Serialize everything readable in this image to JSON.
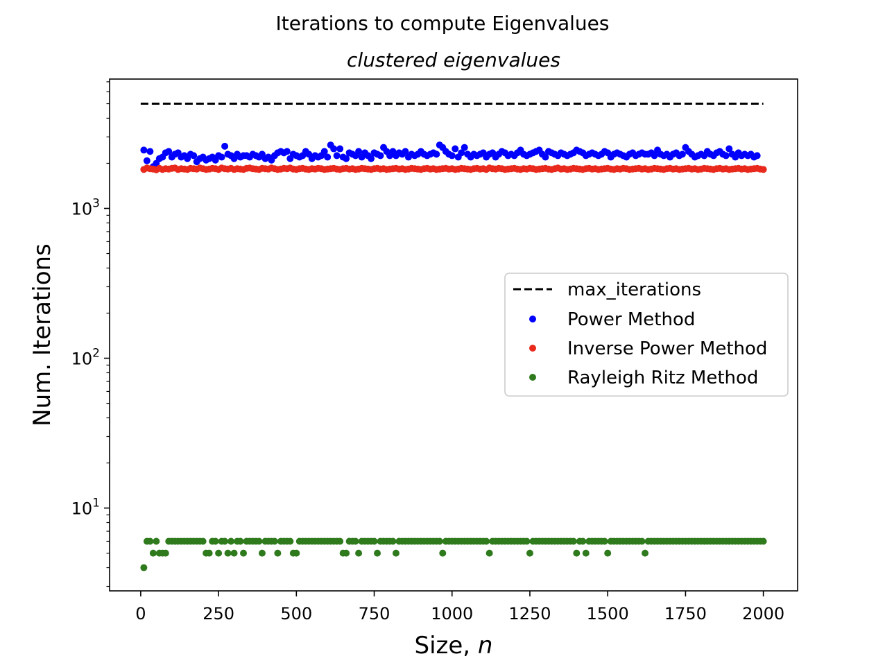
{
  "chart_data": {
    "type": "scatter",
    "title": "Iterations to compute Eigenvalues",
    "subtitle": "clustered eigenvalues",
    "xlabel": "Size, ",
    "xlabel_var": "n",
    "ylabel": "Num. Iterations",
    "yscale": "log",
    "xlim": [
      -100,
      2110
    ],
    "ylim": [
      2.8,
      7300
    ],
    "x_ticks": [
      0,
      250,
      500,
      750,
      1000,
      1250,
      1500,
      1750,
      2000
    ],
    "x_tick_labels": [
      "0",
      "250",
      "500",
      "750",
      "1000",
      "1250",
      "1500",
      "1750",
      "2000"
    ],
    "y_ticks": [
      10,
      100,
      1000
    ],
    "y_tick_bases": [
      "10",
      "10",
      "10"
    ],
    "y_tick_exponents": [
      "1",
      "2",
      "3"
    ],
    "grid": false,
    "legend_position": "center-right",
    "x_start": 10,
    "x_step": 10,
    "series": [
      {
        "name": "max_iterations",
        "kind": "line",
        "style": "dashed",
        "color": "#000000",
        "x": [
          0,
          2000
        ],
        "y": [
          5000,
          5000
        ]
      },
      {
        "name": "Power Method",
        "kind": "scatter",
        "color": "#0000ff",
        "values": [
          2450,
          2080,
          2400,
          1900,
          2000,
          2150,
          2200,
          2350,
          2400,
          2200,
          2300,
          2350,
          2200,
          2250,
          2150,
          2300,
          2250,
          2050,
          2150,
          2200,
          2100,
          2150,
          2200,
          2100,
          2250,
          2200,
          2600,
          2300,
          2250,
          2150,
          2300,
          2200,
          2250,
          2250,
          2200,
          2300,
          2250,
          2200,
          2300,
          2150,
          2200,
          2100,
          2250,
          2350,
          2400,
          2350,
          2400,
          2150,
          2300,
          2250,
          2200,
          2250,
          2400,
          2300,
          2150,
          2250,
          2200,
          2250,
          2400,
          2200,
          2650,
          2500,
          2250,
          2500,
          2200,
          2150,
          2350,
          2300,
          2250,
          2400,
          2200,
          2350,
          2250,
          2150,
          2350,
          2300,
          2250,
          2550,
          2400,
          2250,
          2400,
          2250,
          2350,
          2300,
          2400,
          2200,
          2300,
          2250,
          2300,
          2400,
          2300,
          2250,
          2300,
          2350,
          2300,
          2650,
          2550,
          2400,
          2300,
          2250,
          2500,
          2200,
          2350,
          2550,
          2300,
          2200,
          2300,
          2250,
          2300,
          2350,
          2200,
          2300,
          2350,
          2200,
          2300,
          2400,
          2350,
          2250,
          2300,
          2250,
          2350,
          2450,
          2300,
          2250,
          2300,
          2350,
          2400,
          2450,
          2300,
          2200,
          2400,
          2350,
          2300,
          2250,
          2350,
          2300,
          2250,
          2300,
          2350,
          2450,
          2400,
          2350,
          2250,
          2300,
          2350,
          2300,
          2250,
          2300,
          2400,
          2350,
          2200,
          2300,
          2350,
          2300,
          2250,
          2200,
          2300,
          2350,
          2250,
          2300,
          2350,
          2300,
          2300,
          2350,
          2250,
          2450,
          2300,
          2250,
          2300,
          2200,
          2300,
          2350,
          2250,
          2300,
          2550,
          2400,
          2300,
          2200,
          2250,
          2300,
          2250,
          2400,
          2300,
          2250,
          2350,
          2400,
          2300,
          2250,
          2500,
          2300,
          2200,
          2350,
          2250,
          2300,
          2250,
          2300,
          2200,
          2250
        ]
      },
      {
        "name": "Inverse Power Method",
        "kind": "scatter",
        "color": "#e8291c",
        "values": [
          1820,
          1860,
          1840,
          1830,
          1810,
          1850,
          1820,
          1840,
          1830,
          1850,
          1860,
          1820,
          1840,
          1830,
          1820,
          1850,
          1840,
          1830,
          1860,
          1840,
          1820,
          1830,
          1850,
          1840,
          1820,
          1860,
          1840,
          1830,
          1850,
          1820,
          1840,
          1830,
          1820,
          1850,
          1860,
          1840,
          1830,
          1820,
          1850,
          1840,
          1830,
          1860,
          1840,
          1820,
          1830,
          1850,
          1840,
          1860,
          1830,
          1820,
          1840,
          1850,
          1830,
          1820,
          1840,
          1830,
          1850,
          1840,
          1820,
          1830,
          1840,
          1850,
          1830,
          1820,
          1840,
          1850,
          1830,
          1840,
          1820,
          1830,
          1850,
          1840,
          1830,
          1820,
          1840,
          1850,
          1830,
          1840,
          1820,
          1830,
          1840,
          1850,
          1830,
          1840,
          1820,
          1830,
          1850,
          1840,
          1830,
          1820,
          1840,
          1850,
          1830,
          1840,
          1820,
          1830,
          1840,
          1850,
          1830,
          1840,
          1820,
          1830,
          1850,
          1840,
          1830,
          1820,
          1840,
          1850,
          1830,
          1840,
          1820,
          1860,
          1840,
          1830,
          1850,
          1840,
          1820,
          1830,
          1840,
          1850,
          1830,
          1820,
          1840,
          1830,
          1850,
          1840,
          1820,
          1830,
          1840,
          1850,
          1830,
          1820,
          1840,
          1860,
          1830,
          1840,
          1820,
          1830,
          1850,
          1840,
          1830,
          1820,
          1840,
          1850,
          1830,
          1840,
          1820,
          1830,
          1840,
          1850,
          1830,
          1820,
          1840,
          1830,
          1850,
          1840,
          1820,
          1830,
          1840,
          1850,
          1830,
          1840,
          1820,
          1830,
          1850,
          1840,
          1830,
          1820,
          1840,
          1850,
          1830,
          1840,
          1820,
          1830,
          1840,
          1850,
          1830,
          1840,
          1820,
          1830,
          1850,
          1840,
          1830,
          1820,
          1840,
          1850,
          1830,
          1840,
          1820,
          1830,
          1840,
          1850,
          1830,
          1840,
          1820,
          1830,
          1840,
          1850,
          1830,
          1820
        ]
      },
      {
        "name": "Rayleigh Ritz Method",
        "kind": "scatter",
        "color": "#2e7a1c",
        "values": [
          4,
          6,
          6,
          5,
          6,
          5,
          5,
          5,
          6,
          6,
          6,
          6,
          6,
          6,
          6,
          6,
          6,
          6,
          6,
          6,
          5,
          5,
          6,
          6,
          5,
          6,
          6,
          5,
          6,
          5,
          6,
          6,
          5,
          6,
          6,
          6,
          6,
          6,
          5,
          6,
          6,
          6,
          6,
          5,
          6,
          6,
          6,
          6,
          5,
          5,
          6,
          6,
          6,
          6,
          6,
          6,
          6,
          6,
          6,
          6,
          6,
          6,
          6,
          6,
          5,
          5,
          6,
          6,
          6,
          5,
          6,
          6,
          6,
          6,
          6,
          5,
          6,
          6,
          6,
          6,
          6,
          5,
          6,
          6,
          6,
          6,
          6,
          6,
          6,
          6,
          6,
          6,
          6,
          6,
          6,
          6,
          5,
          6,
          6,
          6,
          6,
          6,
          6,
          6,
          6,
          6,
          6,
          6,
          6,
          6,
          6,
          5,
          6,
          6,
          6,
          6,
          6,
          6,
          6,
          6,
          6,
          6,
          6,
          6,
          5,
          6,
          6,
          6,
          6,
          6,
          6,
          6,
          6,
          6,
          6,
          6,
          6,
          6,
          6,
          5,
          6,
          6,
          5,
          6,
          6,
          6,
          6,
          6,
          6,
          5,
          6,
          6,
          6,
          6,
          6,
          6,
          6,
          6,
          6,
          6,
          6,
          5,
          6,
          6,
          6,
          6,
          6,
          6,
          6,
          6,
          6,
          6,
          6,
          6,
          6,
          6,
          6,
          6,
          6,
          6,
          6,
          6,
          6,
          6,
          6,
          6,
          6,
          6,
          6,
          6,
          6,
          6,
          6,
          6,
          6,
          6,
          6,
          6,
          6,
          6
        ]
      }
    ]
  }
}
